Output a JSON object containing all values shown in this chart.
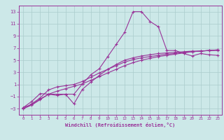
{
  "xlabel": "Windchill (Refroidissement éolien,°C)",
  "bg_color": "#cce8e8",
  "grid_color": "#aacccc",
  "line_color": "#993399",
  "xlim": [
    -0.5,
    23.5
  ],
  "ylim": [
    -4.0,
    14.0
  ],
  "xticks": [
    0,
    1,
    2,
    3,
    4,
    5,
    6,
    7,
    8,
    9,
    10,
    11,
    12,
    13,
    14,
    15,
    16,
    17,
    18,
    19,
    20,
    21,
    22,
    23
  ],
  "yticks": [
    -3,
    -1,
    1,
    3,
    5,
    7,
    9,
    11,
    13
  ],
  "s1_y": [
    -2.8,
    -2.3,
    -1.4,
    -0.6,
    -0.6,
    -0.6,
    -0.6,
    1.1,
    2.6,
    3.6,
    5.6,
    7.6,
    9.6,
    13.0,
    13.0,
    11.4,
    10.5,
    6.6,
    6.6,
    6.1,
    5.7,
    6.1,
    5.9,
    5.8
  ],
  "s2_y": [
    -3.0,
    -2.4,
    -1.5,
    -0.6,
    -0.1,
    0.3,
    0.7,
    1.1,
    1.7,
    2.3,
    2.9,
    3.5,
    4.1,
    4.6,
    5.0,
    5.3,
    5.6,
    5.8,
    6.0,
    6.2,
    6.4,
    6.5,
    6.6,
    6.7
  ],
  "s3_y": [
    -3.0,
    -2.2,
    -1.2,
    0.1,
    0.6,
    0.8,
    1.0,
    1.5,
    2.2,
    2.9,
    3.5,
    4.1,
    4.7,
    5.1,
    5.4,
    5.6,
    5.8,
    6.0,
    6.1,
    6.3,
    6.4,
    6.5,
    6.6,
    6.7
  ],
  "s4_y": [
    -2.8,
    -1.8,
    -0.5,
    -0.6,
    -0.8,
    -0.6,
    -2.2,
    0.2,
    1.4,
    2.5,
    3.5,
    4.3,
    5.0,
    5.4,
    5.7,
    5.9,
    6.1,
    6.2,
    6.3,
    6.4,
    6.5,
    6.5,
    6.6,
    6.6
  ]
}
